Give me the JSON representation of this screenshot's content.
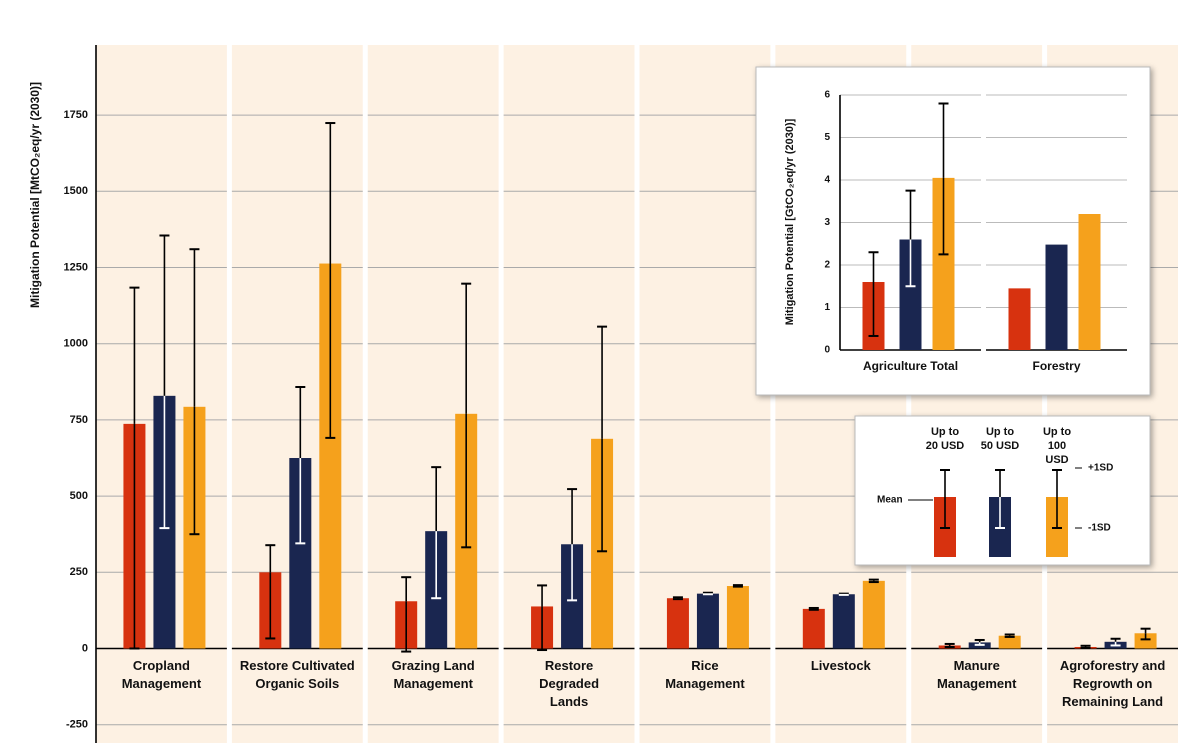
{
  "chart_data": [
    {
      "type": "bar",
      "y_label": "Mitigation Potential [MtCO₂eq/yr (2030)]",
      "categories": [
        "Cropland Management",
        "Restore Cultivated Organic Soils",
        "Grazing Land Management",
        "Restore Degraded Lands",
        "Rice Management",
        "Livestock",
        "Manure Management",
        "Agroforestry and Regrowth on Remaining Land"
      ],
      "series": [
        {
          "name": "Up to 20 USD",
          "color": "#d7320f",
          "values": [
            737,
            250,
            155,
            138,
            165,
            130,
            10,
            5
          ],
          "lower": [
            0,
            33,
            -10,
            -5,
            162,
            127,
            5,
            2
          ],
          "upper": [
            1184,
            339,
            234,
            207,
            168,
            133,
            15,
            9
          ]
        },
        {
          "name": "Up to 50 USD",
          "color": "#1a2650",
          "values": [
            829,
            625,
            385,
            342,
            180,
            178,
            20,
            22
          ],
          "lower": [
            395,
            345,
            165,
            158,
            178,
            176,
            12,
            10
          ],
          "upper": [
            1355,
            858,
            595,
            523,
            183,
            180,
            28,
            32
          ]
        },
        {
          "name": "Up to 100 USD",
          "color": "#f5a11c",
          "values": [
            793,
            1263,
            770,
            688,
            205,
            222,
            42,
            50
          ],
          "lower": [
            375,
            691,
            332,
            319,
            203,
            218,
            38,
            30
          ],
          "upper": [
            1310,
            1724,
            1197,
            1056,
            208,
            226,
            46,
            65
          ]
        }
      ],
      "legend_labels": {
        "mean": "Mean",
        "plus": "+1SD",
        "minus": "-1SD"
      },
      "ylim": [
        -310,
        1980
      ],
      "yticks": [
        -250,
        0,
        250,
        500,
        750,
        1000,
        1250,
        1500,
        1750
      ],
      "grid": true
    },
    {
      "type": "bar",
      "y_label": "Mitigation Potential [GtCO₂eq/yr (2030)]",
      "categories": [
        "Agriculture Total",
        "Forestry"
      ],
      "series": [
        {
          "color": "#d7320f",
          "values": [
            1.6,
            1.45
          ],
          "lower": [
            0.33,
            null
          ],
          "upper": [
            2.3,
            null
          ]
        },
        {
          "color": "#1a2650",
          "values": [
            2.6,
            2.48
          ],
          "lower": [
            1.5,
            null
          ],
          "upper": [
            3.75,
            null
          ]
        },
        {
          "color": "#f5a11c",
          "values": [
            4.05,
            3.2
          ],
          "lower": [
            2.25,
            null
          ],
          "upper": [
            5.8,
            null
          ]
        }
      ],
      "ylim": [
        0,
        6
      ],
      "yticks": [
        0,
        1,
        2,
        3,
        4,
        5,
        6
      ],
      "grid": true
    }
  ]
}
